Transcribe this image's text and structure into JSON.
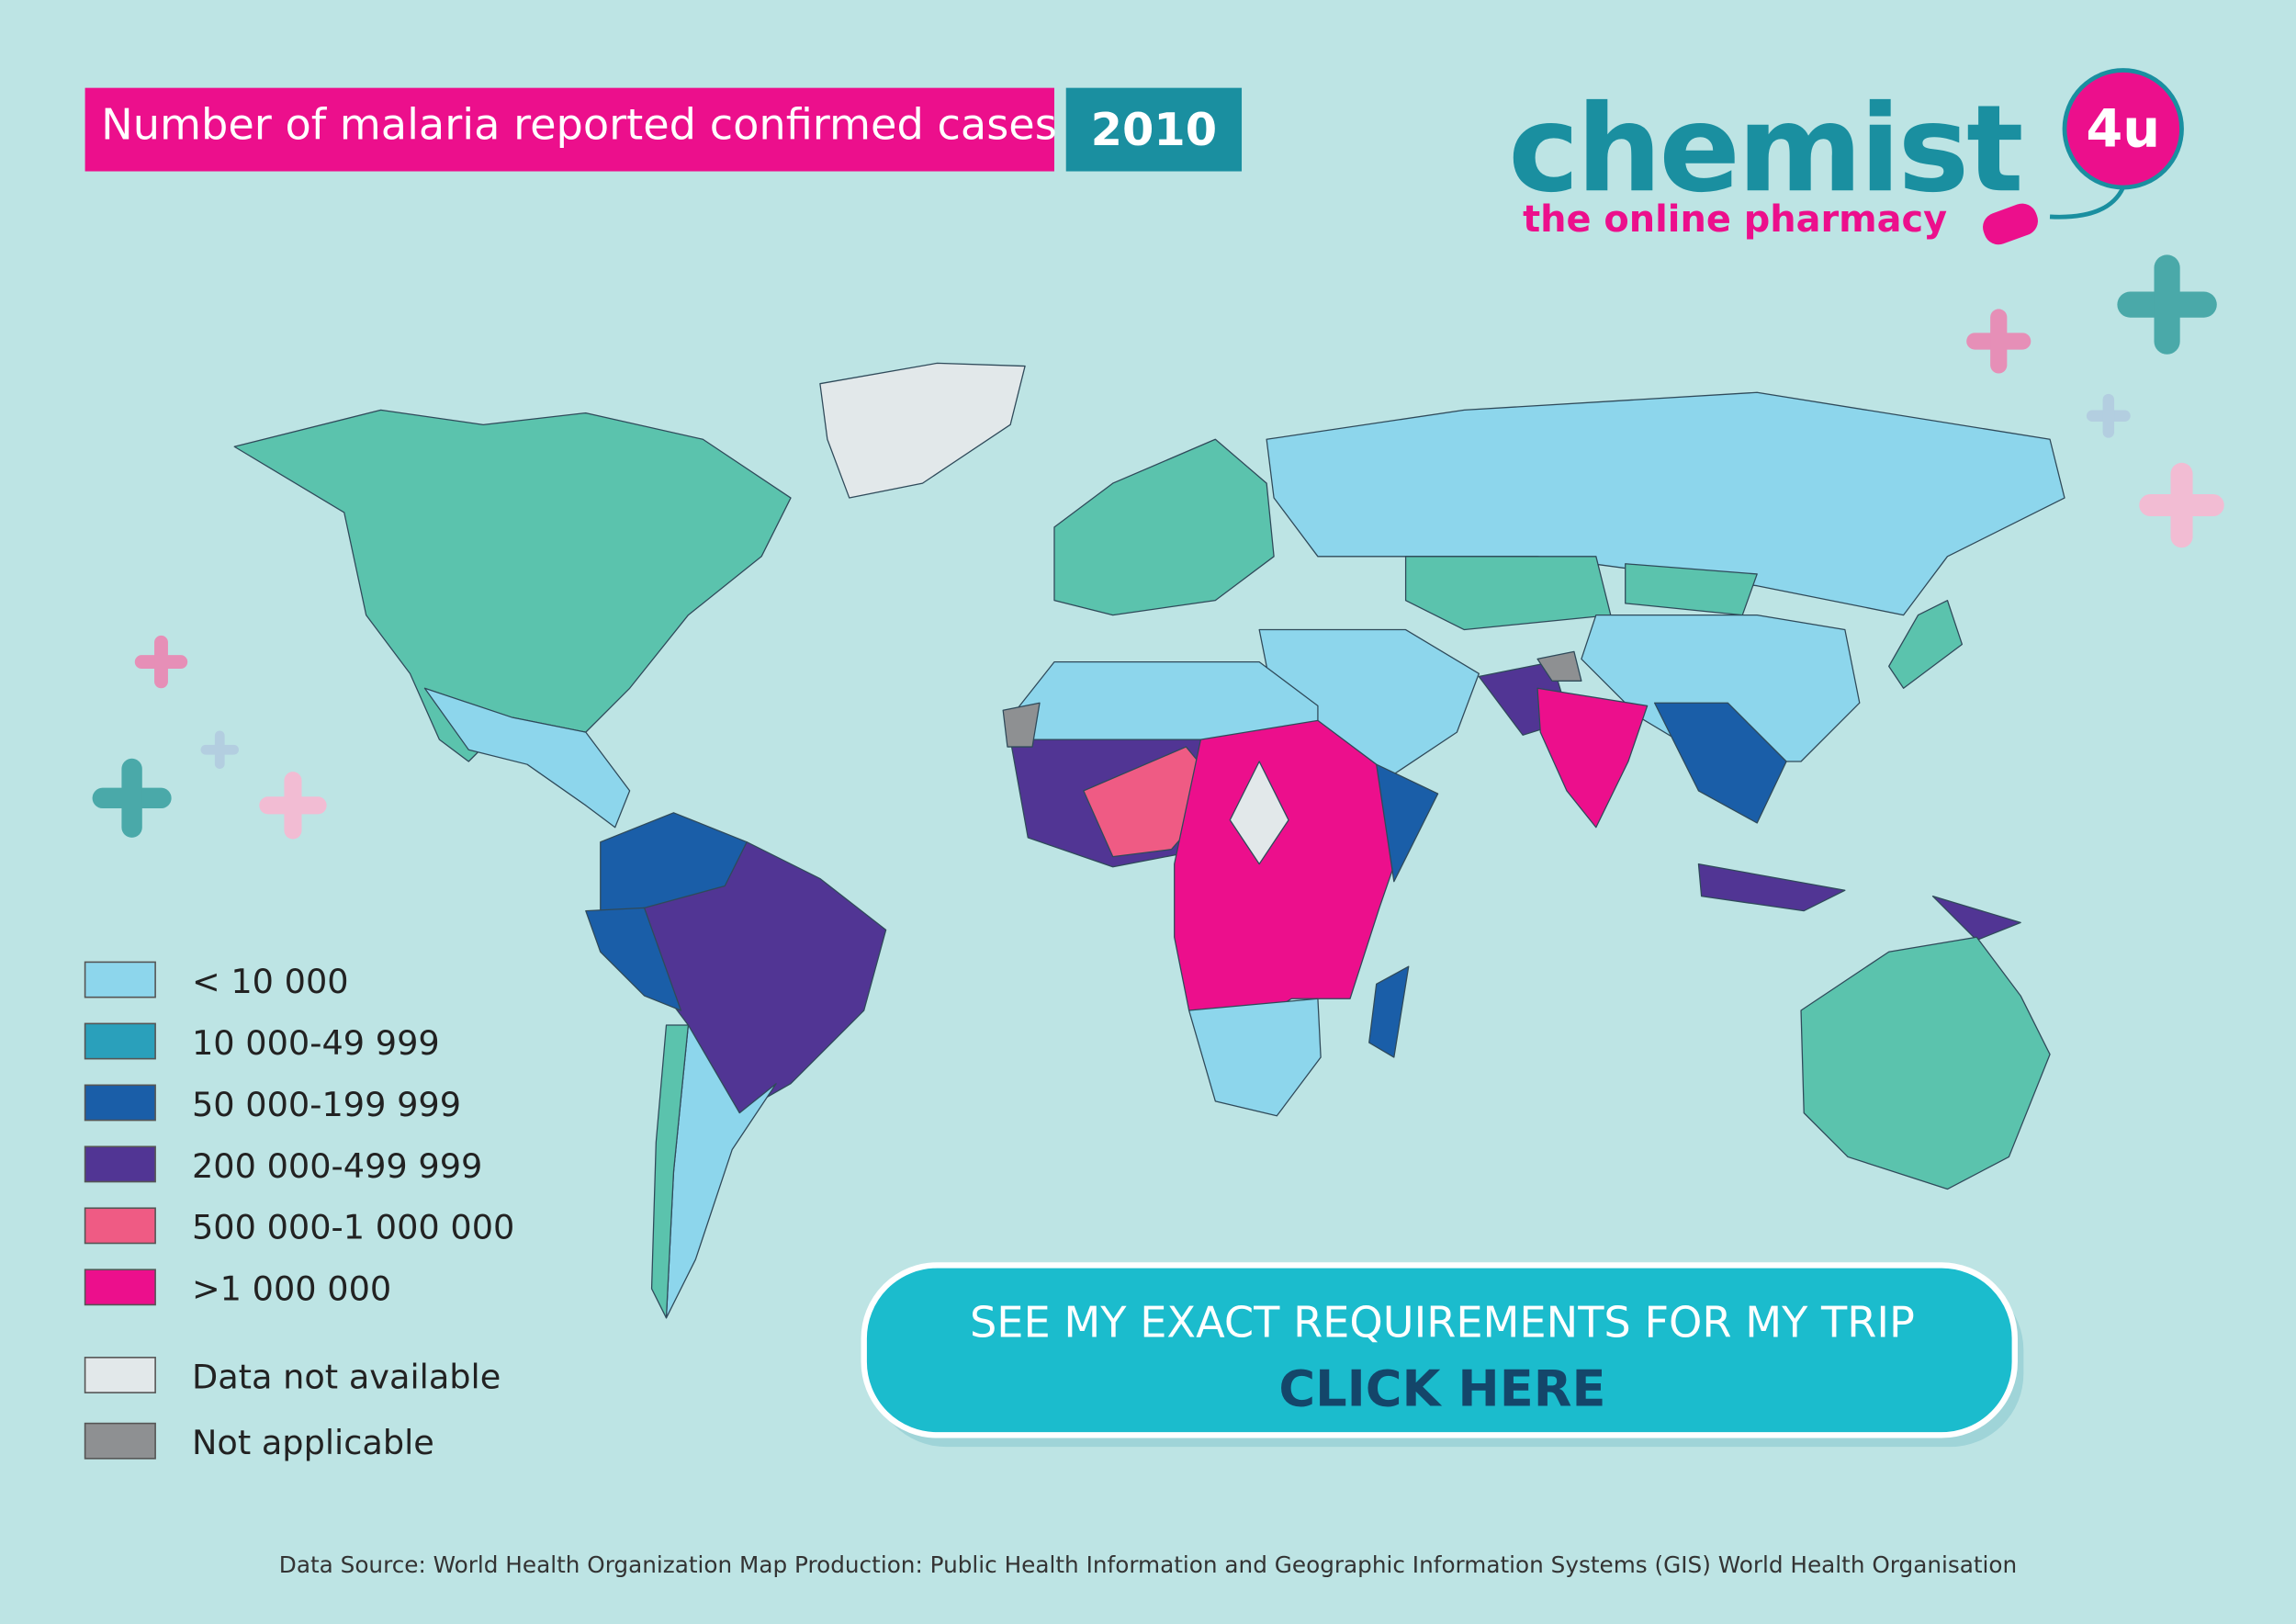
{
  "header": {
    "title": "Number of malaria reported confirmed cases",
    "year": "2010"
  },
  "logo": {
    "name": "chemist",
    "badge": "4u",
    "tagline": "the online pharmacy"
  },
  "legend": {
    "items": [
      {
        "label": "< 10 000",
        "color": "#8dd6ec"
      },
      {
        "label": "10 000-49 999",
        "color": "#2aa0bb"
      },
      {
        "label": "50 000-199 999",
        "color": "#1a5ea8"
      },
      {
        "label": "200 000-499 999",
        "color": "#513594"
      },
      {
        "label": "500 000-1 000 000",
        "color": "#ef5b84"
      },
      {
        "label": ">1 000 000",
        "color": "#ec0f8c"
      },
      {
        "label": "Data not available",
        "color": "#e2e8ea"
      },
      {
        "label": "Not applicable",
        "color": "#8e9092"
      }
    ]
  },
  "button": {
    "line1": "SEE MY EXACT REQUIREMENTS FOR MY TRIP",
    "line2": "CLICK HERE"
  },
  "source": "Data Source: World Health Organization Map Production: Public Health Information and Geographic Information Systems (GIS) World Health Organisation"
}
